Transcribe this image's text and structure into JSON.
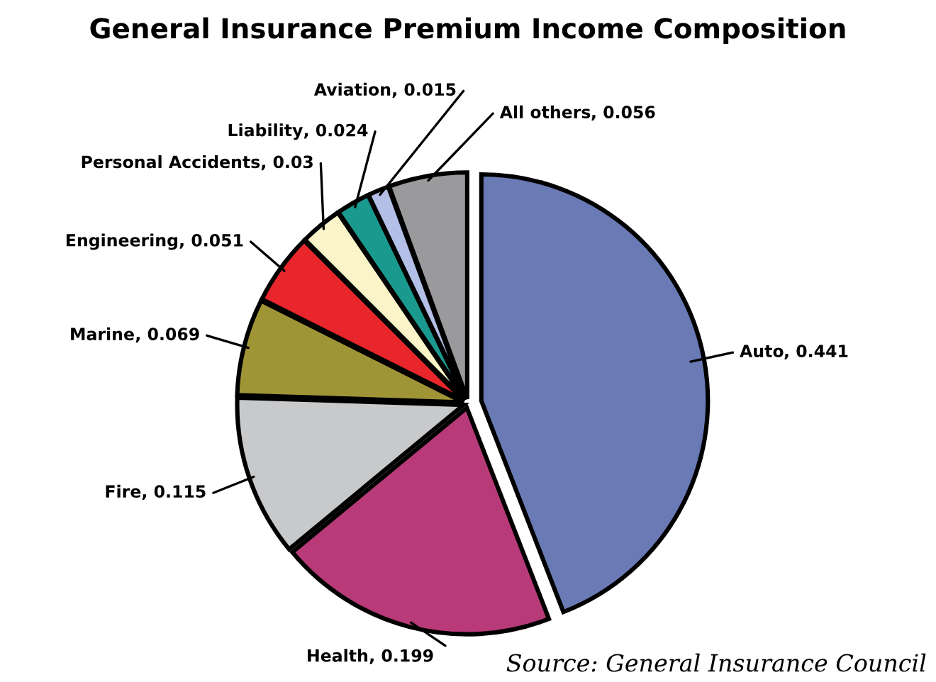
{
  "chart_data": {
    "type": "pie",
    "title": "General Insurance Premium Income Composition",
    "categories": [
      "Auto",
      "Health",
      "Fire",
      "Marine",
      "Engineering",
      "Personal Accidents",
      "Liability",
      "Aviation",
      "All others"
    ],
    "values": [
      0.441,
      0.199,
      0.115,
      0.069,
      0.051,
      0.03,
      0.024,
      0.015,
      0.056
    ],
    "colors": [
      "#6a7ab5",
      "#b83a78",
      "#c8c9cb",
      "#a09536",
      "#e8262b",
      "#fbf4c8",
      "#1a9a8f",
      "#b3bfe6",
      "#9a9a9c"
    ],
    "value_labels": [
      ", 0.441",
      ", 0.199",
      ", 0.115",
      ", 0.069",
      ", 0.051",
      ", 0.03",
      ", 0.024",
      ", 0.015",
      ", 0.056"
    ],
    "annotations": [
      "Source: General Insurance Council"
    ]
  }
}
